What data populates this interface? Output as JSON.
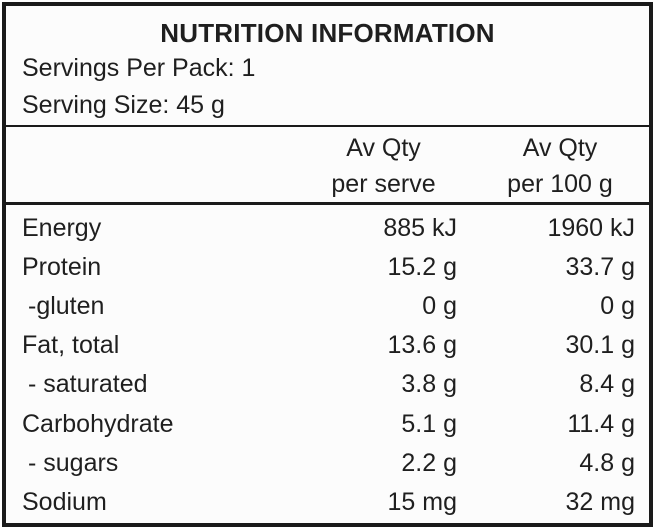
{
  "colors": {
    "background": "#fcfcfc",
    "text": "#1f1f1f",
    "border": "#1a1a1a"
  },
  "label": {
    "title": "NUTRITION INFORMATION",
    "servings_per_pack": "Servings Per Pack: 1",
    "serving_size": "Serving Size: 45 g",
    "header": {
      "per_serve": {
        "line1": "Av Qty",
        "line2": "per serve"
      },
      "per_100g": {
        "line1": "Av Qty",
        "line2": "per 100 g"
      }
    },
    "rows": [
      {
        "nutrient": "Energy",
        "per_serve": "885 kJ",
        "per_100g": "1960 kJ"
      },
      {
        "nutrient": "Protein",
        "per_serve": "15.2 g",
        "per_100g": "33.7 g"
      },
      {
        "nutrient": "-gluten",
        "per_serve": "0 g",
        "per_100g": "0 g"
      },
      {
        "nutrient": "Fat, total",
        "per_serve": "13.6 g",
        "per_100g": "30.1 g"
      },
      {
        "nutrient": "- saturated",
        "per_serve": "3.8 g",
        "per_100g": "8.4 g"
      },
      {
        "nutrient": "Carbohydrate",
        "per_serve": "5.1 g",
        "per_100g": "11.4 g"
      },
      {
        "nutrient": "- sugars",
        "per_serve": "2.2 g",
        "per_100g": "4.8 g"
      },
      {
        "nutrient": "Sodium",
        "per_serve": "15 mg",
        "per_100g": "32 mg"
      }
    ]
  }
}
